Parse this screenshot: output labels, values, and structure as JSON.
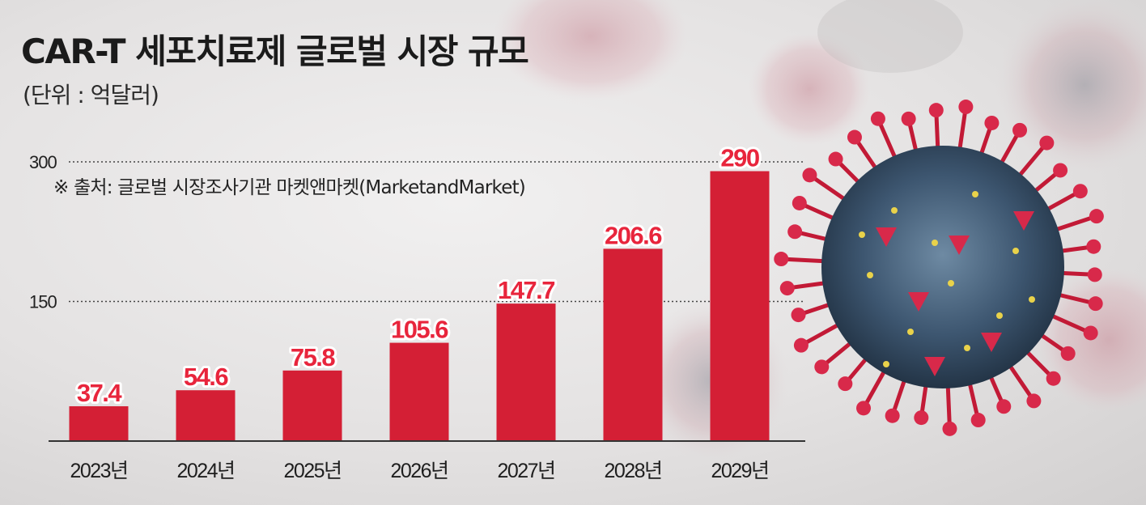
{
  "header": {
    "title": "CAR-T 세포치료제 글로벌 시장 규모",
    "unit": "(단위 : 억달러)",
    "source": "※ 출처: 글로벌 시장조사기관 마켓앤마켓(MarketandMarket)"
  },
  "colors": {
    "bar": "#d41f35",
    "label_fill": "#e8253c",
    "label_stroke": "#ffffff",
    "axis": "#333333",
    "text": "#222222"
  },
  "chart_data": {
    "type": "bar",
    "categories": [
      "2023년",
      "2024년",
      "2025년",
      "2026년",
      "2027년",
      "2028년",
      "2029년"
    ],
    "values": [
      37.4,
      54.6,
      75.8,
      105.6,
      147.7,
      206.6,
      290
    ],
    "value_labels": [
      "37.4",
      "54.6",
      "75.8",
      "105.6",
      "147.7",
      "206.6",
      "290"
    ],
    "ylim": [
      0,
      300
    ],
    "yticks": [
      "150",
      "300"
    ],
    "ytick_values": [
      150,
      300
    ],
    "grid": "dotted",
    "title": "CAR-T 세포치료제 글로벌 시장 규모",
    "xlabel": "",
    "ylabel": ""
  }
}
